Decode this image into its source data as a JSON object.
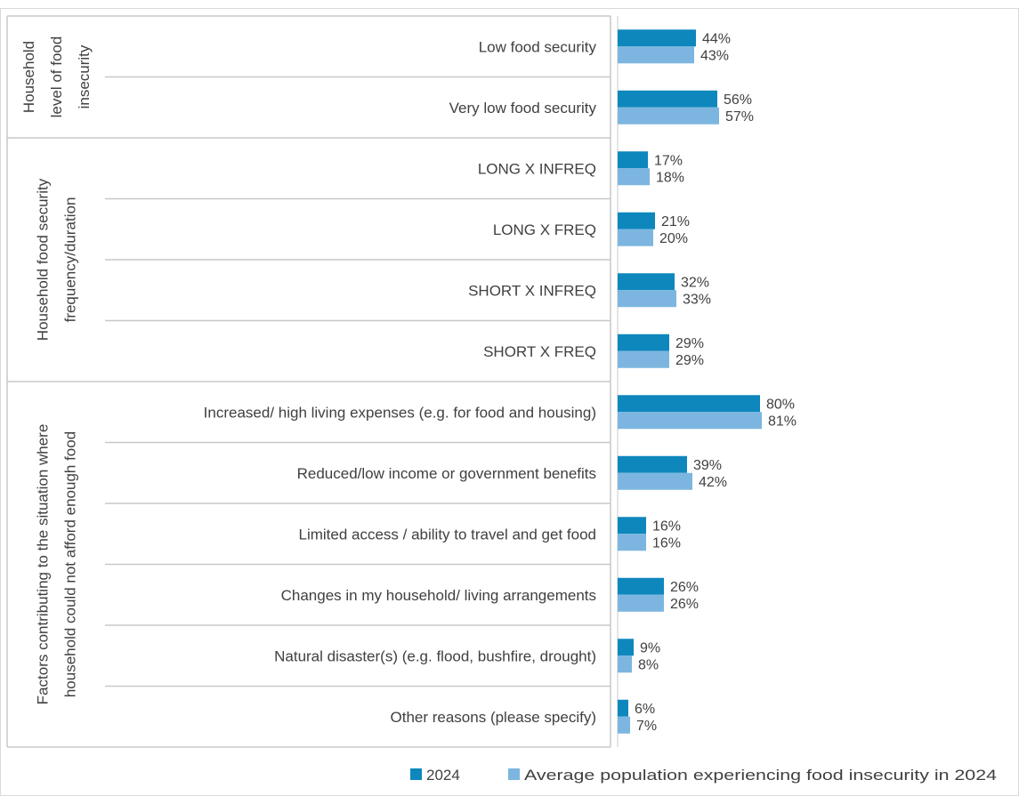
{
  "chart_data": {
    "type": "bar",
    "orientation": "horizontal",
    "title": "",
    "xlim": [
      0,
      100
    ],
    "colors": {
      "series_2024": "#0e87bd",
      "series_avg": "#7cb6e0",
      "grid": "#c8c8c8",
      "text": "#404040"
    },
    "groups": [
      {
        "label": "Household level of food insecurity",
        "label_lines": [
          "Household",
          "level of food",
          "insecurity"
        ]
      },
      {
        "label": "Household food security frequency/duration",
        "label_lines": [
          "Household food security",
          "frequency/duration"
        ]
      },
      {
        "label": "Factors contributing to the situation where household could not afford enough food",
        "label_lines": [
          "Factors contributing to the situation where",
          "household could not afford enough food"
        ]
      }
    ],
    "categories": [
      "Low food security",
      "Very low food security",
      "LONG X INFREQ",
      "LONG X FREQ",
      "SHORT X INFREQ",
      "SHORT X FREQ",
      "Increased/ high living expenses (e.g. for food and housing)",
      "Reduced/low income or government benefits",
      "Limited access / ability to travel and get food",
      "Changes in my household/ living arrangements",
      "Natural disaster(s) (e.g. flood, bushfire, drought)",
      "Other reasons (please specify)"
    ],
    "category_group": [
      0,
      0,
      1,
      1,
      1,
      1,
      2,
      2,
      2,
      2,
      2,
      2
    ],
    "series": [
      {
        "name": "2024",
        "values": [
          44,
          56,
          17,
          21,
          32,
          29,
          80,
          39,
          16,
          26,
          9,
          6
        ],
        "labels": [
          "44%",
          "56%",
          "17%",
          "21%",
          "32%",
          "29%",
          "80%",
          "39%",
          "16%",
          "26%",
          "9%",
          "6%"
        ]
      },
      {
        "name": "Average population experiencing food insecurity in 2024",
        "values": [
          43,
          57,
          18,
          20,
          33,
          29,
          81,
          42,
          16,
          26,
          8,
          7
        ],
        "labels": [
          "43%",
          "57%",
          "18%",
          "20%",
          "33%",
          "29%",
          "81%",
          "42%",
          "16%",
          "26%",
          "8%",
          "7%"
        ]
      }
    ],
    "legend_position": "bottom-right"
  }
}
